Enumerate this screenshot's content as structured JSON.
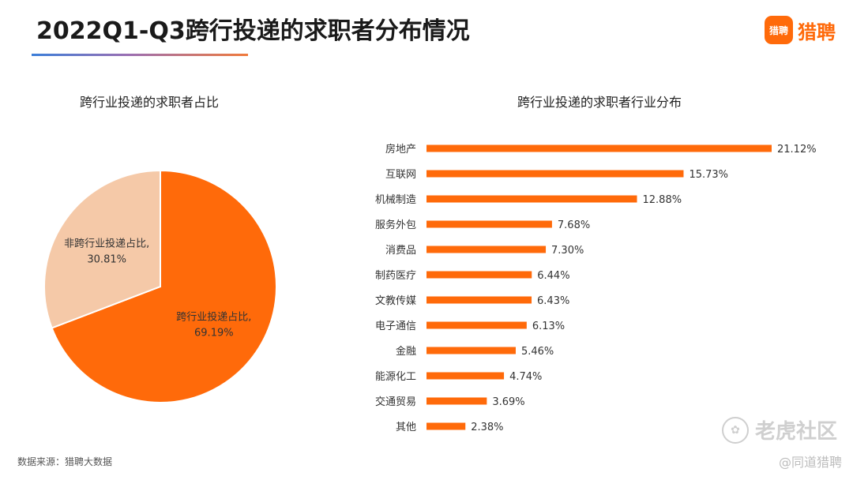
{
  "header": {
    "title": "2022Q1-Q3跨行投递的求职者分布情况",
    "brand_logo_text": "猎聘",
    "brand_name": "猎聘"
  },
  "footer": {
    "source": "数据来源：猎聘大数据",
    "watermark": "老虎社区",
    "handle": "@同道猎聘"
  },
  "colors": {
    "primary": "#ff6a0a",
    "light": "#f5c9a8",
    "brand": "#ff6a0a"
  },
  "chart_data": [
    {
      "type": "pie",
      "title": "跨行业投递的求职者占比",
      "categories": [
        "跨行业投递占比",
        "非跨行业投递占比"
      ],
      "values": [
        69.19,
        30.81
      ],
      "value_labels": [
        "69.19%",
        "30.81%"
      ],
      "slice_colors": [
        "#ff6a0a",
        "#f5c9a8"
      ],
      "start": "12 o'clock, clockwise"
    },
    {
      "type": "bar",
      "orientation": "horizontal",
      "title": "跨行业投递的求职者行业分布",
      "categories": [
        "房地产",
        "互联网",
        "机械制造",
        "服务外包",
        "消费品",
        "制药医疗",
        "文教传媒",
        "电子通信",
        "金融",
        "能源化工",
        "交通贸易",
        "其他"
      ],
      "values": [
        21.12,
        15.73,
        12.88,
        7.68,
        7.3,
        6.44,
        6.43,
        6.13,
        5.46,
        4.74,
        3.69,
        2.38
      ],
      "value_labels": [
        "21.12%",
        "15.73%",
        "12.88%",
        "7.68%",
        "7.30%",
        "6.44%",
        "6.43%",
        "6.13%",
        "5.46%",
        "4.74%",
        "3.69%",
        "2.38%"
      ],
      "xlim": [
        0,
        21.12
      ],
      "grid": false,
      "bar_color": "#ff6a0a"
    }
  ]
}
